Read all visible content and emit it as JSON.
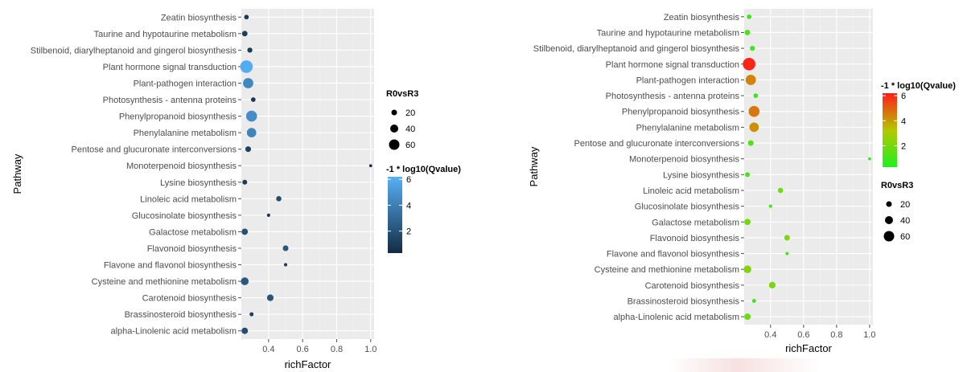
{
  "chart_data": [
    {
      "type": "scatter",
      "title": "",
      "xlabel": "richFactor",
      "ylabel": "Pathway",
      "xlim": [
        0.24,
        1.02
      ],
      "x_ticks": [
        0.4,
        0.6,
        0.8,
        1.0
      ],
      "x_tick_labels": [
        "0.4",
        "0.6",
        "0.8",
        "1.0"
      ],
      "grid": true,
      "size_legend": {
        "title": "R0vsR3",
        "values": [
          20,
          40,
          60
        ],
        "labels": [
          "20",
          "40",
          "60"
        ]
      },
      "color_legend": {
        "title": "-1 * log10(Qvalue)",
        "range": [
          0.3,
          6.2
        ],
        "ticks": [
          2,
          4,
          6
        ],
        "tick_labels": [
          "2",
          "4",
          "6"
        ],
        "low_color": "#132B43",
        "high_color": "#56B1F7"
      },
      "legend_order": [
        "size",
        "color"
      ],
      "categories": [
        "Zeatin biosynthesis",
        "Taurine and hypotaurine metabolism",
        "Stilbenoid, diarylheptanoid and gingerol biosynthesis",
        "Plant hormone signal transduction",
        "Plant-pathogen interaction",
        "Photosynthesis - antenna proteins",
        "Phenylpropanoid biosynthesis",
        "Phenylalanine metabolism",
        "Pentose and glucuronate interconversions",
        "Monoterpenoid biosynthesis",
        "Lysine biosynthesis",
        "Linoleic acid metabolism",
        "Glucosinolate biosynthesis",
        "Galactose metabolism",
        "Flavonoid biosynthesis",
        "Flavone and flavonol biosynthesis",
        "Cysteine and methionine metabolism",
        "Carotenoid biosynthesis",
        "Brassinosteroid biosynthesis",
        "alpha-Linolenic acid metabolism"
      ],
      "points": [
        {
          "x": 0.27,
          "size": 8,
          "q": 0.9
        },
        {
          "x": 0.26,
          "size": 12,
          "q": 1.2
        },
        {
          "x": 0.29,
          "size": 10,
          "q": 1.0
        },
        {
          "x": 0.27,
          "size": 70,
          "q": 6.0
        },
        {
          "x": 0.28,
          "size": 46,
          "q": 4.4
        },
        {
          "x": 0.31,
          "size": 8,
          "q": 0.8
        },
        {
          "x": 0.3,
          "size": 52,
          "q": 4.6
        },
        {
          "x": 0.3,
          "size": 38,
          "q": 4.2
        },
        {
          "x": 0.28,
          "size": 13,
          "q": 1.3
        },
        {
          "x": 1.0,
          "size": 3,
          "q": 0.5
        },
        {
          "x": 0.26,
          "size": 9,
          "q": 1.0
        },
        {
          "x": 0.46,
          "size": 11,
          "q": 1.8
        },
        {
          "x": 0.4,
          "size": 4,
          "q": 1.0
        },
        {
          "x": 0.26,
          "size": 16,
          "q": 1.9
        },
        {
          "x": 0.5,
          "size": 13,
          "q": 2.2
        },
        {
          "x": 0.5,
          "size": 4,
          "q": 1.1
        },
        {
          "x": 0.26,
          "size": 25,
          "q": 2.3
        },
        {
          "x": 0.41,
          "size": 18,
          "q": 2.1
        },
        {
          "x": 0.3,
          "size": 6,
          "q": 1.2
        },
        {
          "x": 0.26,
          "size": 17,
          "q": 1.8
        }
      ]
    },
    {
      "type": "scatter",
      "title": "",
      "xlabel": "richFactor",
      "ylabel": "Pathway",
      "xlim": [
        0.24,
        1.02
      ],
      "x_ticks": [
        0.4,
        0.6,
        0.8,
        1.0
      ],
      "x_tick_labels": [
        "0.4",
        "0.6",
        "0.8",
        "1.0"
      ],
      "grid": true,
      "size_legend": {
        "title": "R0vsR3",
        "values": [
          20,
          40,
          60
        ],
        "labels": [
          "20",
          "40",
          "60"
        ]
      },
      "color_legend": {
        "title": "-1 * log10(Qvalue)",
        "range": [
          0.3,
          6.2
        ],
        "ticks": [
          2,
          4,
          6
        ],
        "tick_labels": [
          "2",
          "4",
          "6"
        ],
        "low_color": "#1FF01F",
        "mid_color": "#B3C800",
        "high_color": "#FF1A1A"
      },
      "legend_order": [
        "color",
        "size"
      ],
      "categories": [
        "Zeatin biosynthesis",
        "Taurine and hypotaurine metabolism",
        "Stilbenoid, diarylheptanoid and gingerol biosynthesis",
        "Plant hormone signal transduction",
        "Plant-pathogen interaction",
        "Photosynthesis - antenna proteins",
        "Phenylpropanoid biosynthesis",
        "Phenylalanine metabolism",
        "Pentose and glucuronate interconversions",
        "Monoterpenoid biosynthesis",
        "Lysine biosynthesis",
        "Linoleic acid metabolism",
        "Glucosinolate biosynthesis",
        "Galactose metabolism",
        "Flavonoid biosynthesis",
        "Flavone and flavonol biosynthesis",
        "Cysteine and methionine metabolism",
        "Carotenoid biosynthesis",
        "Brassinosteroid biosynthesis",
        "alpha-Linolenic acid metabolism"
      ],
      "points": [
        {
          "x": 0.27,
          "size": 8,
          "q": 0.9
        },
        {
          "x": 0.26,
          "size": 12,
          "q": 1.2
        },
        {
          "x": 0.29,
          "size": 10,
          "q": 1.0
        },
        {
          "x": 0.27,
          "size": 70,
          "q": 6.0
        },
        {
          "x": 0.28,
          "size": 46,
          "q": 4.4
        },
        {
          "x": 0.31,
          "size": 8,
          "q": 0.8
        },
        {
          "x": 0.3,
          "size": 52,
          "q": 4.6
        },
        {
          "x": 0.3,
          "size": 38,
          "q": 4.2
        },
        {
          "x": 0.28,
          "size": 13,
          "q": 1.3
        },
        {
          "x": 1.0,
          "size": 3,
          "q": 0.5
        },
        {
          "x": 0.26,
          "size": 9,
          "q": 1.0
        },
        {
          "x": 0.46,
          "size": 11,
          "q": 1.8
        },
        {
          "x": 0.4,
          "size": 4,
          "q": 1.0
        },
        {
          "x": 0.26,
          "size": 16,
          "q": 1.9
        },
        {
          "x": 0.5,
          "size": 13,
          "q": 2.2
        },
        {
          "x": 0.5,
          "size": 4,
          "q": 1.1
        },
        {
          "x": 0.26,
          "size": 25,
          "q": 2.3
        },
        {
          "x": 0.41,
          "size": 18,
          "q": 2.1
        },
        {
          "x": 0.3,
          "size": 6,
          "q": 1.2
        },
        {
          "x": 0.26,
          "size": 17,
          "q": 1.8
        }
      ]
    }
  ]
}
